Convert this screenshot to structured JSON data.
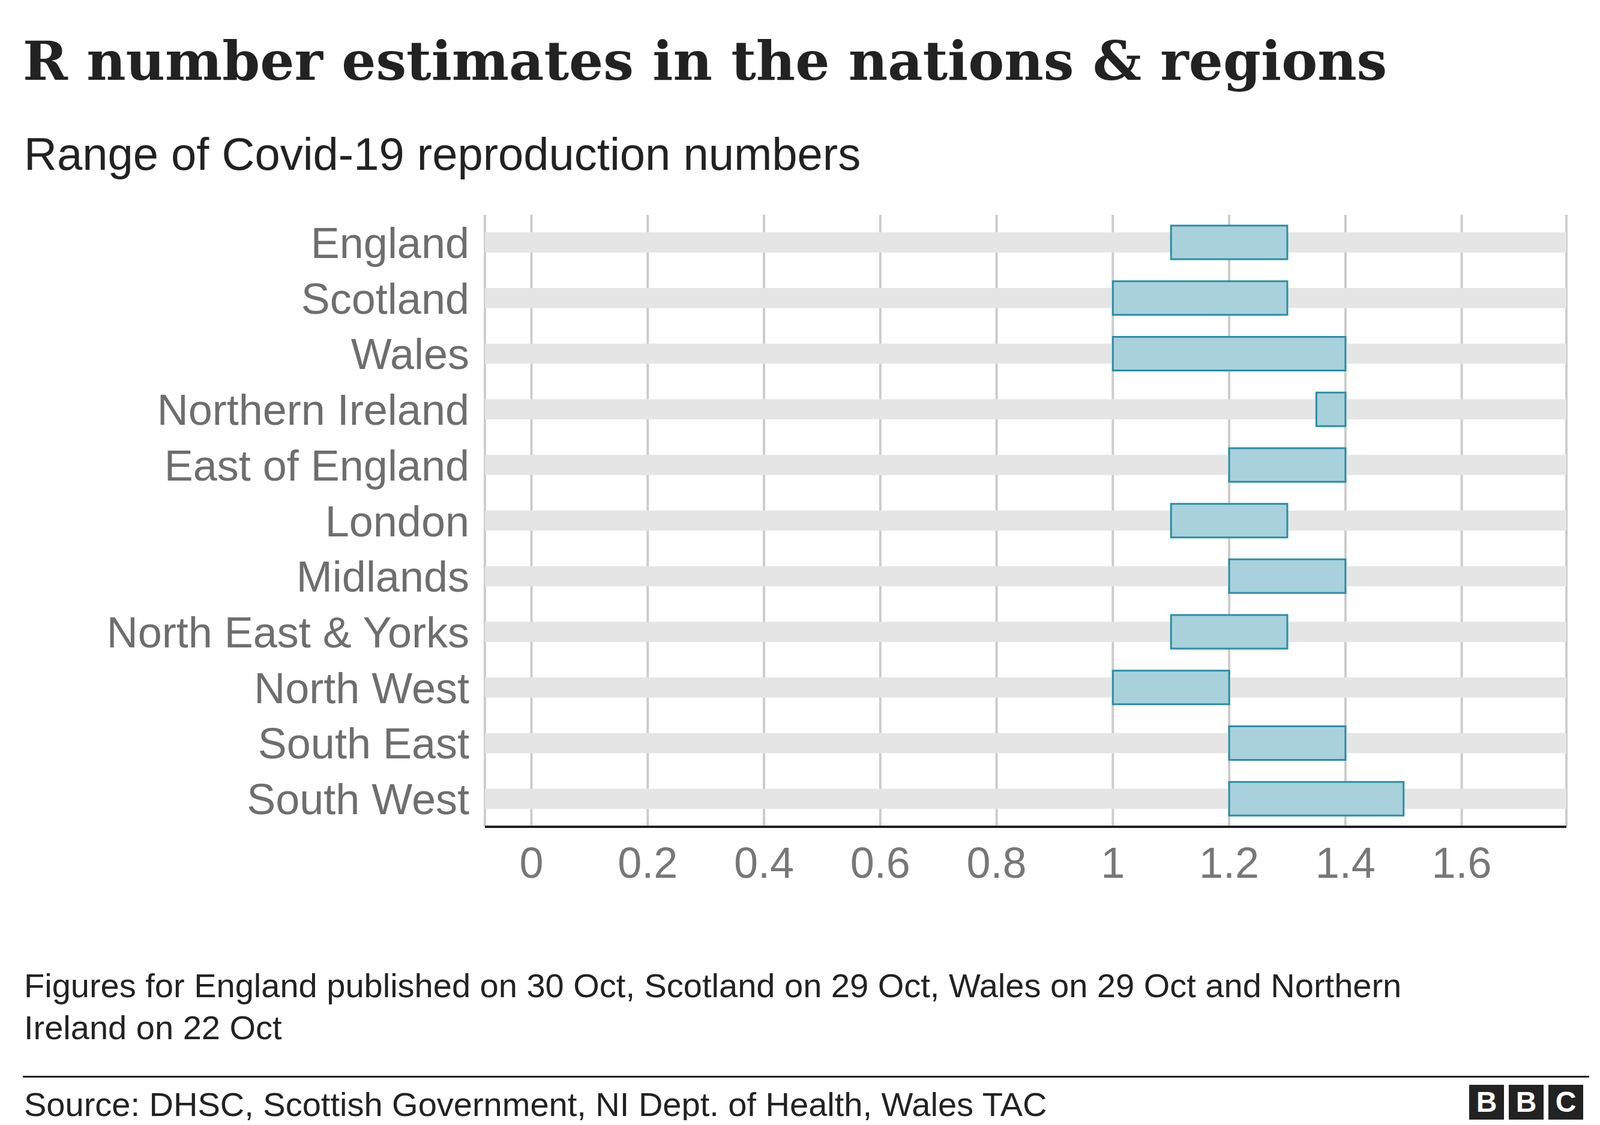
{
  "chart_data": {
    "type": "bar",
    "orientation": "horizontal",
    "title": "R number estimates in the nations & regions",
    "subtitle": "Range of Covid-19 reproduction numbers",
    "categories": [
      "England",
      "Scotland",
      "Wales",
      "Northern Ireland",
      "East of England",
      "London",
      "Midlands",
      "North East & Yorks",
      "North West",
      "South East",
      "South West"
    ],
    "values": [
      [
        1.1,
        1.3
      ],
      [
        1.0,
        1.3
      ],
      [
        1.0,
        1.4
      ],
      [
        1.35,
        1.4
      ],
      [
        1.2,
        1.4
      ],
      [
        1.1,
        1.3
      ],
      [
        1.2,
        1.4
      ],
      [
        1.1,
        1.3
      ],
      [
        1.0,
        1.2
      ],
      [
        1.2,
        1.4
      ],
      [
        1.2,
        1.5
      ]
    ],
    "color": "#a8d1dc",
    "xlim": [
      -0.08,
      1.78
    ],
    "xticks": [
      0,
      0.2,
      0.4,
      0.6,
      0.8,
      1,
      1.2,
      1.4,
      1.6
    ],
    "grid": true,
    "note": "Figures for England published on 30 Oct, Scotland on 29 Oct, Wales on 29 Oct and Northern Ireland on 22 Oct",
    "source": "Source: DHSC, Scottish Government, NI Dept. of Health, Wales TAC",
    "logo": "BBC"
  }
}
